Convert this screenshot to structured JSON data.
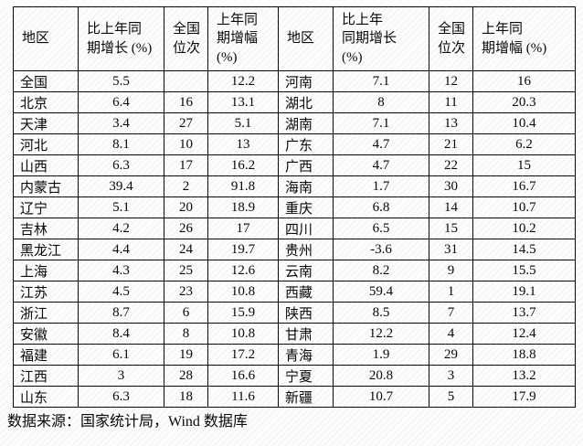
{
  "table": {
    "column_headers": [
      "地区",
      "比上年同\n期增长 (%)",
      "全国\n位次",
      "上年同\n期增幅\n(%)",
      "地区",
      "比上年\n同期增长\n(%)",
      "全国\n位次",
      "上年同\n期增幅 (%)"
    ],
    "rows": [
      [
        "全国",
        "5.5",
        "",
        "12.2",
        "河南",
        "7.1",
        "12",
        "16"
      ],
      [
        "北京",
        "6.4",
        "16",
        "13.1",
        "湖北",
        "8",
        "11",
        "20.3"
      ],
      [
        "天津",
        "3.4",
        "27",
        "5.1",
        "湖南",
        "7.1",
        "13",
        "10.4"
      ],
      [
        "河北",
        "8.1",
        "10",
        "13",
        "广东",
        "4.7",
        "21",
        "6.2"
      ],
      [
        "山西",
        "6.3",
        "17",
        "16.2",
        "广西",
        "4.7",
        "22",
        "15"
      ],
      [
        "内蒙古",
        "39.4",
        "2",
        "91.8",
        "海南",
        "1.7",
        "30",
        "16.7"
      ],
      [
        "辽宁",
        "5.1",
        "20",
        "18.9",
        "重庆",
        "6.8",
        "14",
        "10.7"
      ],
      [
        "吉林",
        "4.2",
        "26",
        "17",
        "四川",
        "6.5",
        "15",
        "10.2"
      ],
      [
        "黑龙江",
        "4.4",
        "24",
        "19.7",
        "贵州",
        "-3.6",
        "31",
        "14.5"
      ],
      [
        "上海",
        "4.3",
        "25",
        "12.6",
        "云南",
        "8.2",
        "9",
        "15.5"
      ],
      [
        "江苏",
        "4.5",
        "23",
        "10.8",
        "西藏",
        "59.4",
        "1",
        "19.1"
      ],
      [
        "浙江",
        "8.7",
        "6",
        "15.9",
        "陕西",
        "8.5",
        "7",
        "13.7"
      ],
      [
        "安徽",
        "8.4",
        "8",
        "10.8",
        "甘肃",
        "12.2",
        "4",
        "12.4"
      ],
      [
        "福建",
        "6.1",
        "19",
        "17.2",
        "青海",
        "1.9",
        "29",
        "18.8"
      ],
      [
        "江西",
        "3",
        "28",
        "16.6",
        "宁夏",
        "20.8",
        "3",
        "13.2"
      ],
      [
        "山东",
        "6.3",
        "18",
        "11.6",
        "新疆",
        "10.7",
        "5",
        "17.9"
      ]
    ]
  },
  "footer": {
    "source_label": "数据来源：国家统计局，Wind 数据库"
  },
  "colors": {
    "text": "#000000",
    "border": "#000000",
    "background": "#fdfdfd"
  }
}
